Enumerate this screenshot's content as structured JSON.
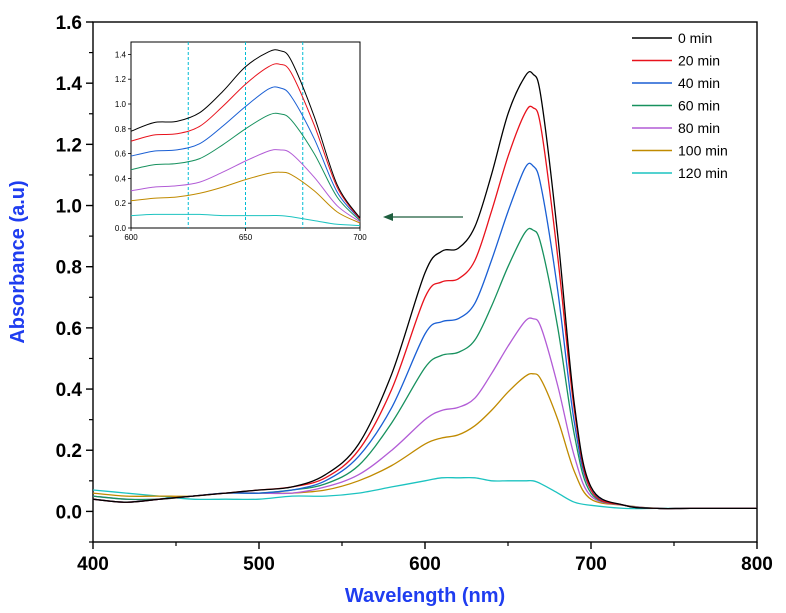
{
  "chart_data": {
    "type": "line",
    "xlabel": "Wavelength (nm)",
    "ylabel": "Absorbance (a.u)",
    "label_color": "#1f3df0",
    "xlim": [
      400,
      800
    ],
    "ylim": [
      -0.1,
      1.6
    ],
    "x_ticks": [
      "400",
      "500",
      "600",
      "700",
      "800"
    ],
    "y_ticks": [
      "0.0",
      "0.2",
      "0.4",
      "0.6",
      "0.8",
      "1.0",
      "1.2",
      "1.4",
      "1.6"
    ],
    "grid": false,
    "legend_position": "top-right",
    "x": [
      400,
      420,
      440,
      460,
      480,
      500,
      520,
      540,
      560,
      580,
      600,
      610,
      620,
      630,
      640,
      650,
      660,
      665,
      670,
      680,
      690,
      700,
      720,
      740,
      760,
      800
    ],
    "series": [
      {
        "name": "0 min",
        "color": "#000000",
        "values": [
          0.04,
          0.03,
          0.04,
          0.05,
          0.06,
          0.07,
          0.08,
          0.12,
          0.22,
          0.45,
          0.78,
          0.85,
          0.86,
          0.93,
          1.1,
          1.3,
          1.42,
          1.43,
          1.35,
          0.9,
          0.35,
          0.08,
          0.02,
          0.01,
          0.01,
          0.01
        ]
      },
      {
        "name": "20 min",
        "color": "#e8121c",
        "values": [
          0.04,
          0.03,
          0.04,
          0.05,
          0.06,
          0.07,
          0.08,
          0.11,
          0.2,
          0.4,
          0.7,
          0.75,
          0.76,
          0.82,
          0.98,
          1.16,
          1.3,
          1.32,
          1.25,
          0.83,
          0.33,
          0.07,
          0.02,
          0.01,
          0.01,
          0.01
        ]
      },
      {
        "name": "40 min",
        "color": "#1a5fd4",
        "values": [
          0.04,
          0.03,
          0.04,
          0.05,
          0.06,
          0.06,
          0.07,
          0.1,
          0.18,
          0.34,
          0.58,
          0.62,
          0.63,
          0.68,
          0.82,
          0.98,
          1.12,
          1.13,
          1.06,
          0.72,
          0.29,
          0.07,
          0.02,
          0.01,
          0.01,
          0.01
        ]
      },
      {
        "name": "60 min",
        "color": "#17915e",
        "values": [
          0.05,
          0.04,
          0.04,
          0.05,
          0.06,
          0.06,
          0.07,
          0.09,
          0.15,
          0.29,
          0.47,
          0.51,
          0.52,
          0.56,
          0.67,
          0.8,
          0.91,
          0.92,
          0.87,
          0.6,
          0.25,
          0.06,
          0.02,
          0.01,
          0.01,
          0.01
        ]
      },
      {
        "name": "80 min",
        "color": "#b25cd6",
        "values": [
          0.05,
          0.04,
          0.04,
          0.05,
          0.06,
          0.06,
          0.06,
          0.08,
          0.12,
          0.2,
          0.3,
          0.33,
          0.34,
          0.37,
          0.45,
          0.54,
          0.62,
          0.63,
          0.6,
          0.41,
          0.18,
          0.05,
          0.02,
          0.01,
          0.01,
          0.01
        ]
      },
      {
        "name": "100 min",
        "color": "#c08a00",
        "values": [
          0.06,
          0.05,
          0.05,
          0.05,
          0.06,
          0.06,
          0.06,
          0.07,
          0.1,
          0.15,
          0.22,
          0.24,
          0.25,
          0.28,
          0.33,
          0.39,
          0.44,
          0.45,
          0.43,
          0.3,
          0.13,
          0.04,
          0.02,
          0.01,
          0.01,
          0.01
        ]
      },
      {
        "name": "120 min",
        "color": "#1cc3c0",
        "values": [
          0.07,
          0.06,
          0.05,
          0.04,
          0.04,
          0.04,
          0.05,
          0.05,
          0.06,
          0.08,
          0.1,
          0.11,
          0.11,
          0.11,
          0.1,
          0.1,
          0.1,
          0.1,
          0.09,
          0.06,
          0.03,
          0.02,
          0.01,
          0.01,
          0.01,
          0.01
        ]
      }
    ],
    "inset": {
      "xlim": [
        600,
        700
      ],
      "ylim": [
        0.0,
        1.5
      ],
      "x_ticks": [
        "600",
        "650",
        "700"
      ],
      "y_ticks": [
        "0.0",
        "0.2",
        "0.4",
        "0.6",
        "0.8",
        "1.0",
        "1.2",
        "1.4"
      ],
      "reference_lines": [
        625,
        650,
        675
      ],
      "reference_color": "#00bcd4",
      "arrow_color": "#1e5e3f"
    }
  }
}
